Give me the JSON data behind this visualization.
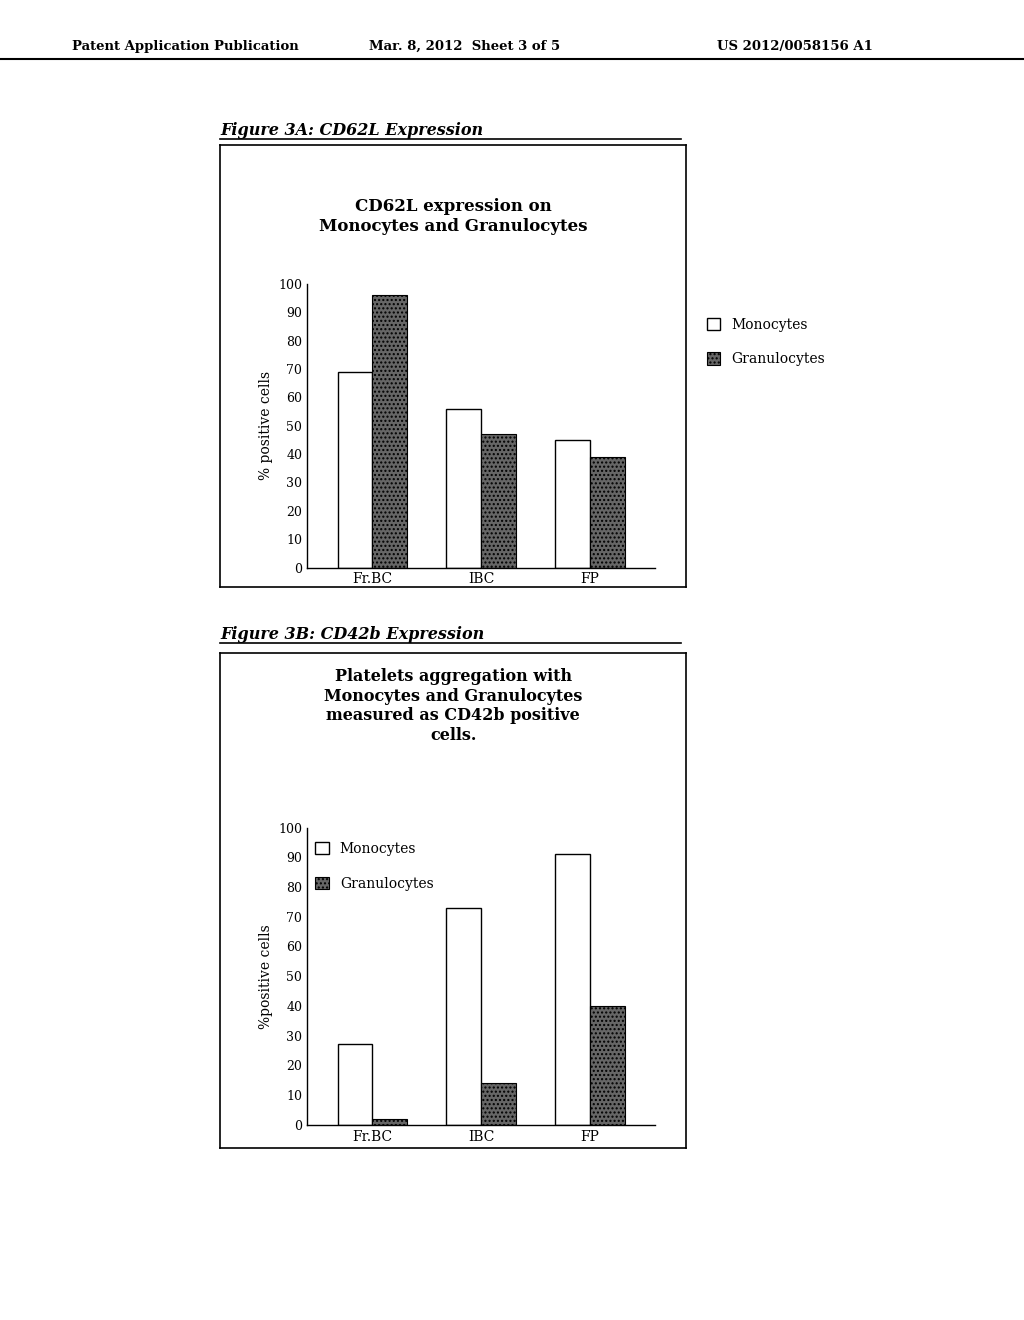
{
  "page_header_left": "Patent Application Publication",
  "page_header_mid": "Mar. 8, 2012  Sheet 3 of 5",
  "page_header_right": "US 2012/0058156 A1",
  "fig3a": {
    "caption": "Figure 3A: CD62L Expression",
    "chart_title": "CD62L expression on\nMonocytes and Granulocytes",
    "ylabel": "% positive cells",
    "categories": [
      "Fr.BC",
      "IBC",
      "FP"
    ],
    "monocytes": [
      69,
      56,
      45
    ],
    "granulocytes": [
      96,
      47,
      39
    ],
    "legend": [
      "Monocytes",
      "Granulocytes"
    ],
    "ylim": [
      0,
      100
    ],
    "yticks": [
      0,
      10,
      20,
      30,
      40,
      50,
      60,
      70,
      80,
      90,
      100
    ]
  },
  "fig3b": {
    "caption": "Figure 3B: CD42b Expression",
    "chart_title": "Platelets aggregation with\nMonocytes and Granulocytes\nmeasured as CD42b positive\ncells.",
    "ylabel": "%positive cells",
    "categories": [
      "Fr.BC",
      "IBC",
      "FP"
    ],
    "monocytes": [
      27,
      73,
      91
    ],
    "granulocytes": [
      2,
      14,
      40
    ],
    "legend": [
      "Monocytes",
      "Granulocytes"
    ],
    "ylim": [
      0,
      100
    ],
    "yticks": [
      0,
      10,
      20,
      30,
      40,
      50,
      60,
      70,
      80,
      90,
      100
    ]
  },
  "page_bg": "white",
  "monocyte_color": "white",
  "granulocyte_color": "#666666",
  "bar_edge_color": "black"
}
